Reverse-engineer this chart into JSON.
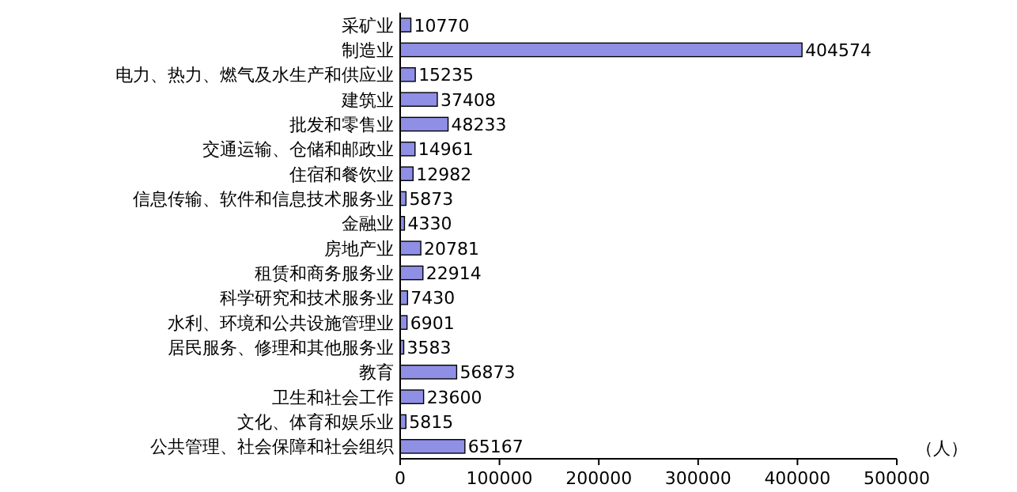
{
  "chart_data": {
    "type": "bar",
    "orientation": "horizontal",
    "xlabel": "（人）",
    "categories": [
      "采矿业",
      "制造业",
      "电力、热力、燃气及水生产和供应业",
      "建筑业",
      "批发和零售业",
      "交通运输、仓储和邮政业",
      "住宿和餐饮业",
      "信息传输、软件和信息技术服务业",
      "金融业",
      "房地产业",
      "租赁和商务服务业",
      "科学研究和技术服务业",
      "水利、环境和公共设施管理业",
      "居民服务、修理和其他服务业",
      "教育",
      "卫生和社会工作",
      "文化、体育和娱乐业",
      "公共管理、社会保障和社会组织"
    ],
    "values": [
      10770,
      404574,
      15235,
      37408,
      48233,
      14961,
      12982,
      5873,
      4330,
      20781,
      22914,
      7430,
      6901,
      3583,
      56873,
      23600,
      5815,
      65167
    ],
    "color": "#8f8fe6",
    "data_labels": true,
    "grid": false,
    "xlim": [
      0,
      500000
    ],
    "xticks": [
      0,
      100000,
      200000,
      300000,
      400000,
      500000
    ]
  }
}
